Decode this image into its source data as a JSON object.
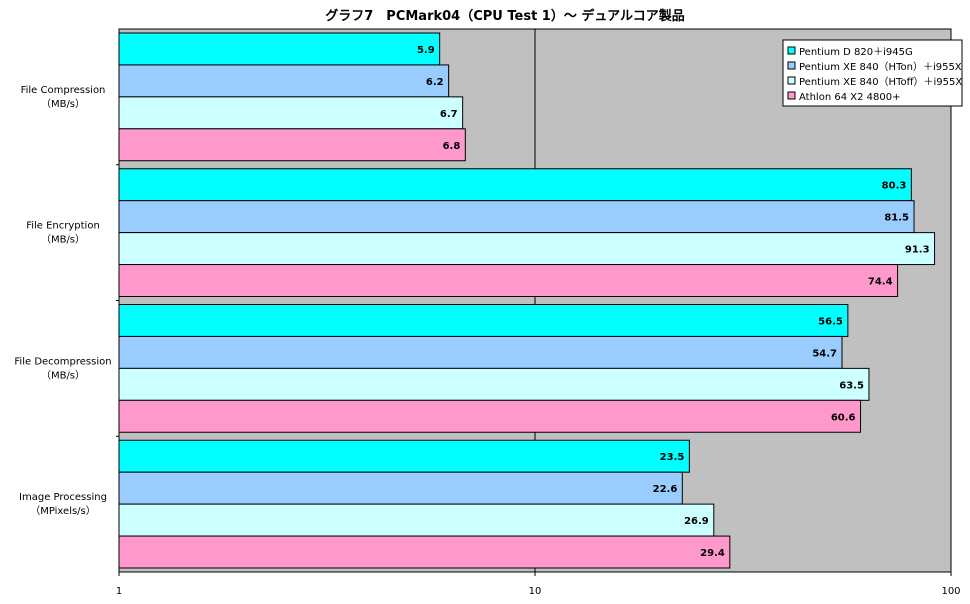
{
  "chart_data": {
    "type": "bar",
    "orientation": "horizontal",
    "title": "グラフ7　PCMark04（CPU Test 1）～ デュアルコア製品",
    "x_scale": "log",
    "xlim": [
      1,
      100
    ],
    "x_ticks": [
      "1",
      "10",
      "100"
    ],
    "grid": true,
    "legend_position": "top-right",
    "categories": [
      [
        "File Compression",
        "（MB/s）"
      ],
      [
        "File Encryption",
        "（MB/s）"
      ],
      [
        "File Decompression",
        "（MB/s）"
      ],
      [
        "Image Processing",
        "（MPixels/s）"
      ]
    ],
    "series": [
      {
        "name": "Pentium D 820＋i945G",
        "color": "#00ffff",
        "values": [
          5.9,
          80.3,
          56.5,
          23.5
        ]
      },
      {
        "name": "Pentium XE 840（HTon）＋i955X",
        "color": "#99ccff",
        "values": [
          6.2,
          81.5,
          54.7,
          22.6
        ]
      },
      {
        "name": "Pentium XE 840（HToff）＋i955X",
        "color": "#ccffff",
        "values": [
          6.7,
          91.3,
          63.5,
          26.9
        ]
      },
      {
        "name": "Athlon 64 X2 4800+",
        "color": "#ff99cc",
        "values": [
          6.8,
          74.4,
          60.6,
          29.4
        ]
      }
    ],
    "value_labels": [
      [
        "5.9",
        "80.3",
        "56.5",
        "23.5"
      ],
      [
        "6.2",
        "81.5",
        "54.7",
        "22.6"
      ],
      [
        "6.7",
        "91.3",
        "63.5",
        "26.9"
      ],
      [
        "6.8",
        "74.4",
        "60.6",
        "29.4"
      ]
    ],
    "plot_background": "#c0c0c0"
  }
}
